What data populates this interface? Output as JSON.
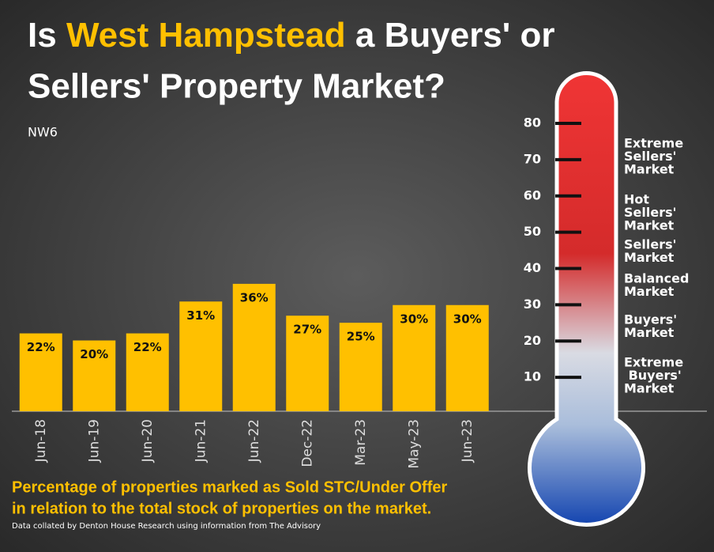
{
  "chart_data": [
    {
      "type": "bar",
      "title_parts": [
        "Is",
        "West Hampstead",
        "a Buyers' or",
        "Sellers' Property Market?"
      ],
      "subtitle": "NW6",
      "categories": [
        "Jun-18",
        "Jun-19",
        "Jun-20",
        "Jun-21",
        "Jun-22",
        "Dec-22",
        "Mar-23",
        "May-23",
        "Jun-23"
      ],
      "values": [
        22,
        20,
        22,
        31,
        36,
        27,
        25,
        30,
        30
      ],
      "value_labels": [
        "22%",
        "20%",
        "22%",
        "31%",
        "36%",
        "27%",
        "25%",
        "30%",
        "30%"
      ],
      "color": "#ffc000",
      "ylim": [
        0,
        40
      ],
      "caption": [
        "Percentage of properties marked as Sold STC/Under Offer",
        "in relation to the total stock of properties on the market."
      ],
      "source": "Data collated by Denton House Research using information from The Advisory"
    },
    {
      "type": "thermometer",
      "ylim": [
        0,
        80
      ],
      "yticks": [
        10,
        20,
        30,
        40,
        50,
        60,
        70,
        80
      ],
      "zones": [
        [
          "Extreme",
          "Sellers'",
          "Market"
        ],
        [
          "Hot",
          "Sellers'",
          "Market"
        ],
        [
          "Sellers'",
          "Market"
        ],
        [
          "Balanced",
          "Market"
        ],
        [
          "Buyers'",
          "Market"
        ],
        [
          "Extreme",
          " Buyers'",
          "Market"
        ]
      ]
    }
  ]
}
